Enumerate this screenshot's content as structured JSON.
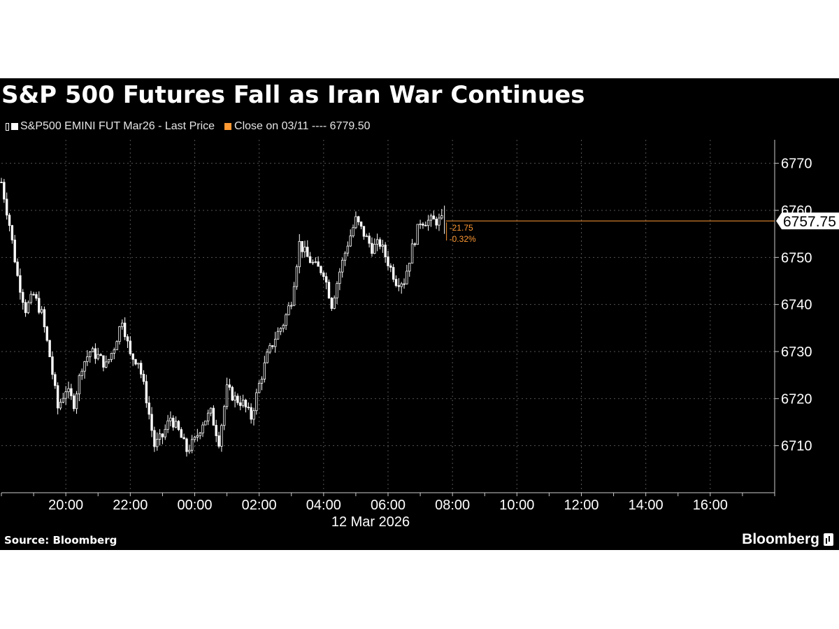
{
  "chart_data": {
    "type": "candlestick",
    "title": "S&P 500 Futures Fall as Iran War Continues",
    "legend": [
      {
        "label": "S&P500 EMINI FUT Mar26 - Last Price",
        "color": "#ffffff"
      },
      {
        "label": "Close on 03/11 ---- 6779.50",
        "color": "#ff9933"
      }
    ],
    "y_axis": {
      "ticks": [
        6710,
        6720,
        6730,
        6740,
        6750,
        6760,
        6770
      ],
      "range": [
        6700,
        6775
      ],
      "side": "right"
    },
    "x_axis": {
      "ticks": [
        "20:00",
        "22:00",
        "00:00",
        "02:00",
        "04:00",
        "06:00",
        "08:00",
        "10:00",
        "12:00",
        "14:00",
        "16:00"
      ],
      "tick_hours": [
        20,
        22,
        24,
        26,
        28,
        30,
        32,
        34,
        36,
        38,
        40
      ],
      "range_hours": [
        18,
        42
      ],
      "date_label": "12 Mar 2026"
    },
    "last_price": {
      "value": 6757.75,
      "label": "6757.75",
      "color": "#ffffff"
    },
    "change": {
      "abs": "-21.75",
      "pct": "-0.32%",
      "color": "#ff9933"
    },
    "series": [
      {
        "name": "S&P500 EMINI FUT Mar26 - Last Price",
        "close_hours": [
          18.0,
          18.25,
          18.5,
          18.75,
          19.0,
          19.25,
          19.5,
          19.75,
          20.0,
          20.25,
          20.5,
          20.75,
          21.0,
          21.25,
          21.5,
          21.75,
          22.0,
          22.25,
          22.5,
          22.75,
          23.0,
          23.25,
          23.5,
          23.75,
          24.0,
          24.25,
          24.5,
          24.75,
          25.0,
          25.25,
          25.5,
          25.75,
          26.0,
          26.25,
          26.5,
          26.75,
          27.0,
          27.25,
          27.5,
          27.75,
          28.0,
          28.25,
          28.5,
          28.75,
          29.0,
          29.25,
          29.5,
          29.75,
          30.0,
          30.25,
          30.5,
          30.75,
          31.0,
          31.25,
          31.5,
          31.75,
          32.0
        ],
        "close_values": [
          6766,
          6757,
          6746,
          6739,
          6742,
          6738,
          6729,
          6718,
          6722,
          6719,
          6727,
          6730,
          6729,
          6727,
          6731,
          6737,
          6729,
          6728,
          6720,
          6710,
          6712,
          6716,
          6713,
          6709,
          6711,
          6715,
          6717,
          6711,
          6722,
          6720,
          6719,
          6716,
          6723,
          6729,
          6733,
          6736,
          6741,
          6753,
          6750,
          6748,
          6747,
          6740,
          6747,
          6753,
          6758,
          6755,
          6752,
          6753,
          6749,
          6745,
          6745,
          6752,
          6757.75,
          6757.75,
          6757.75,
          6757.75,
          6757.75
        ]
      }
    ]
  },
  "footer": {
    "source": "Source: Bloomberg",
    "brand": "Bloomberg"
  }
}
